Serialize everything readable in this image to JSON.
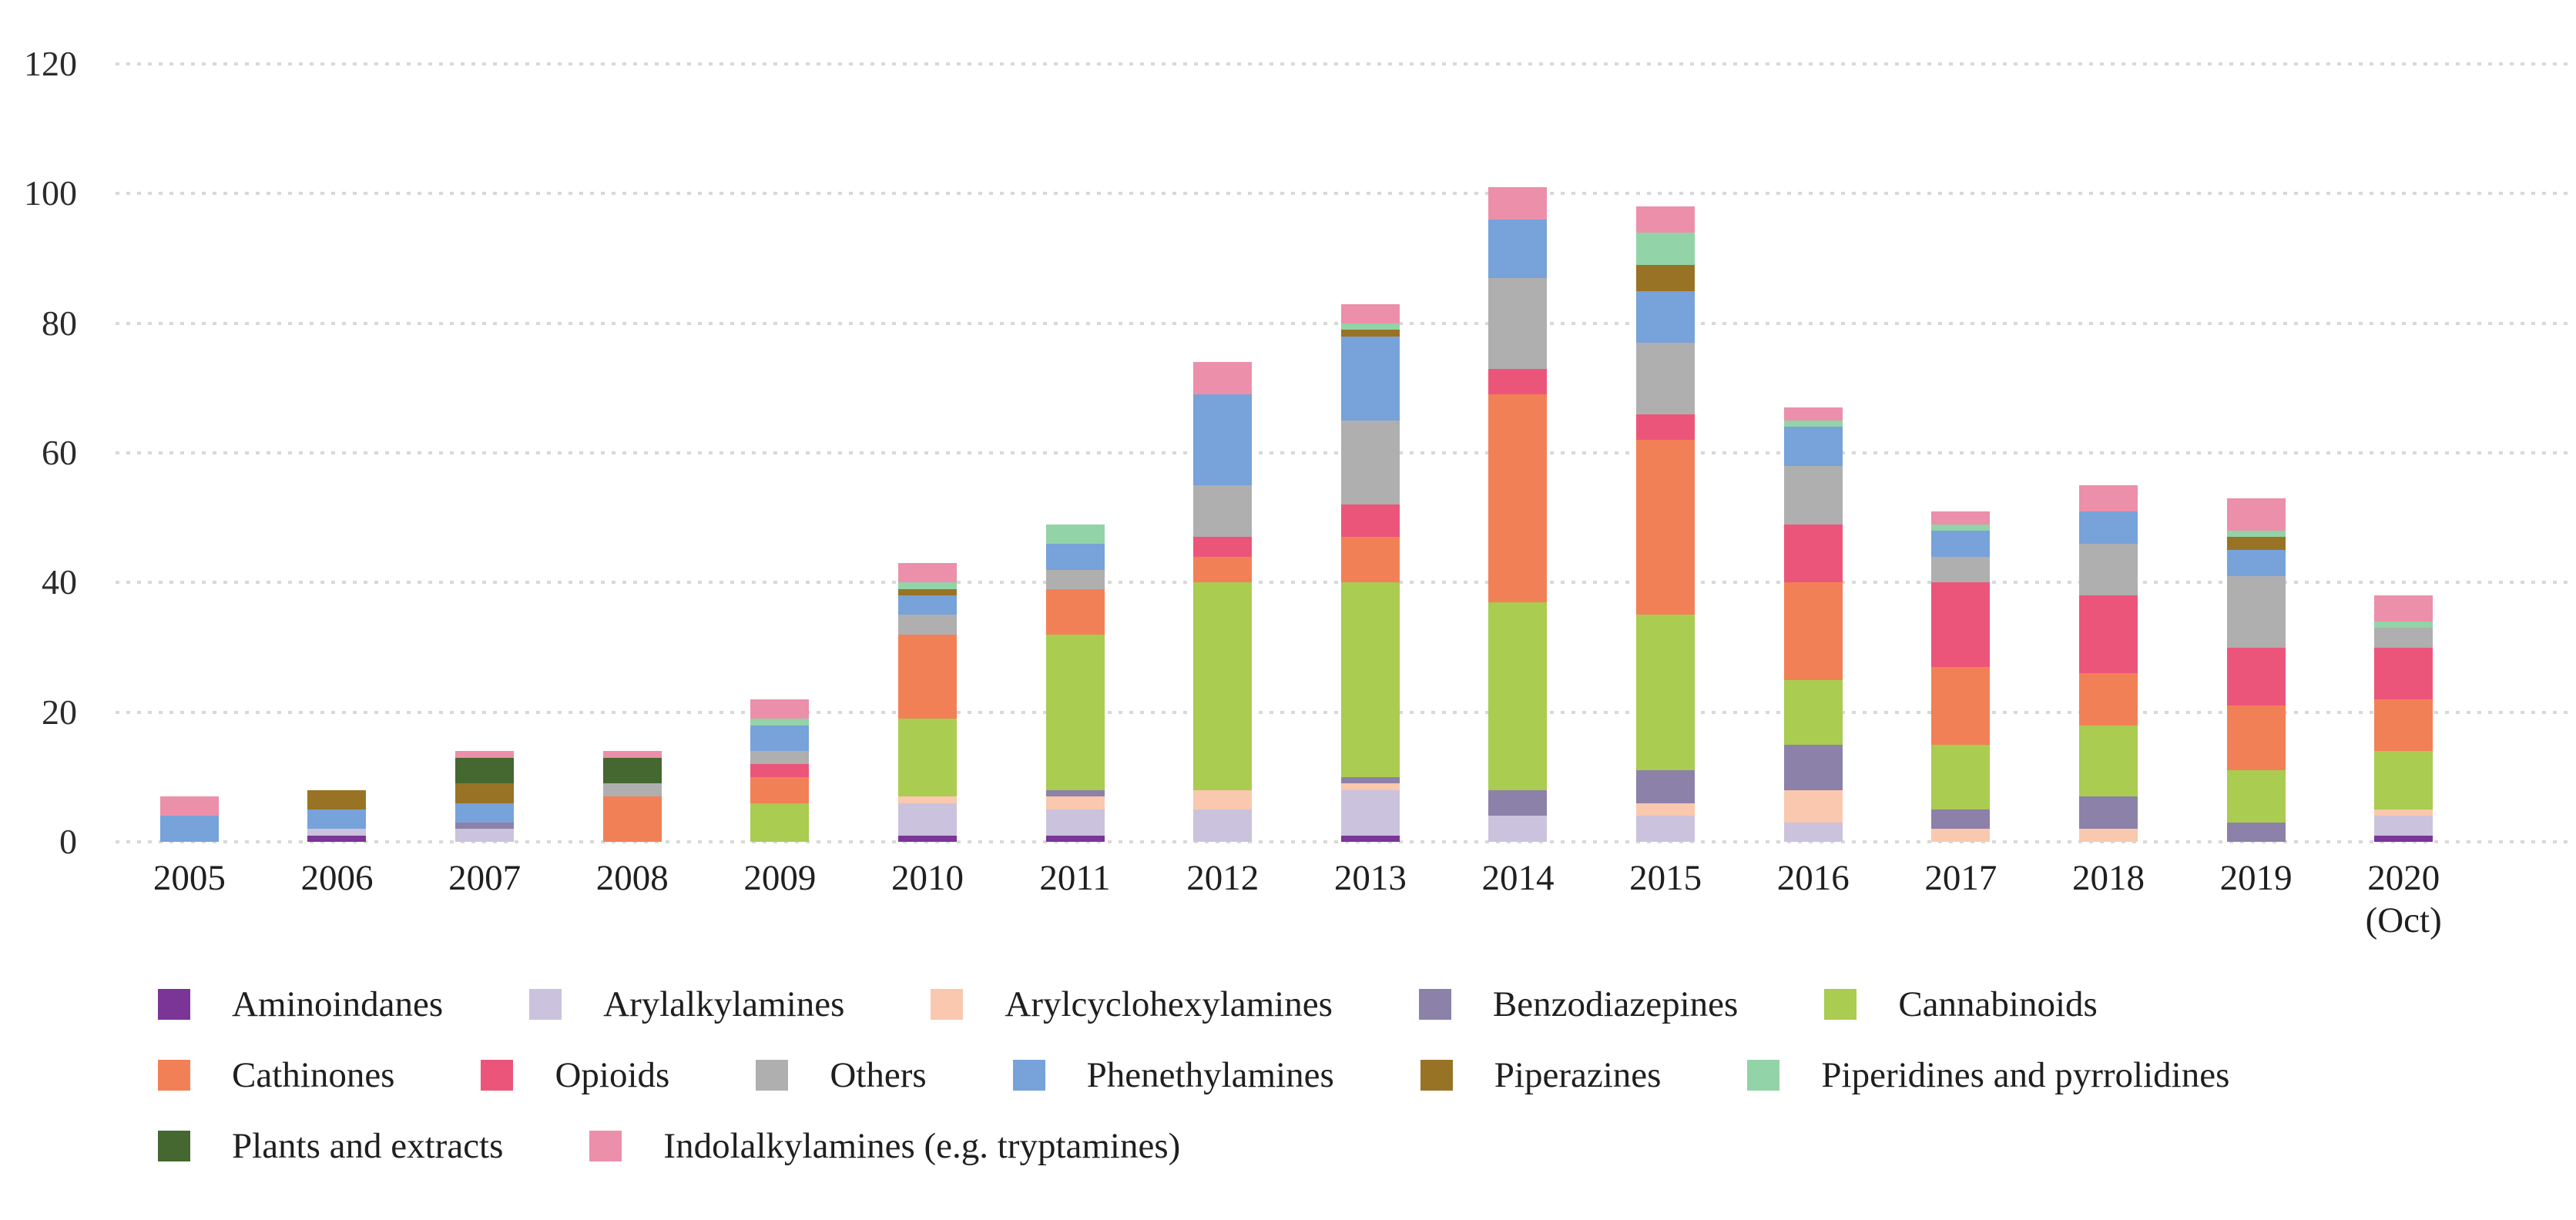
{
  "chart_data": {
    "type": "bar",
    "stacked": true,
    "title": "",
    "xlabel": "",
    "ylabel": "",
    "ylim": [
      0,
      120
    ],
    "yticks": [
      0,
      20,
      40,
      60,
      80,
      100,
      120
    ],
    "grid": "dotted horizontal gridlines",
    "legend_position": "bottom",
    "categories": [
      "2005",
      "2006",
      "2007",
      "2008",
      "2009",
      "2010",
      "2011",
      "2012",
      "2013",
      "2014",
      "2015",
      "2016",
      "2017",
      "2018",
      "2019",
      "2020"
    ],
    "category_note": {
      "category": "2020",
      "text": "(Oct)"
    },
    "series": [
      {
        "name": "Aminoindanes",
        "color": "#7A3597",
        "values": [
          0,
          1,
          0,
          0,
          0,
          1,
          1,
          0,
          1,
          0,
          0,
          0,
          0,
          0,
          0,
          1
        ]
      },
      {
        "name": "Arylalkylamines",
        "color": "#CBC2DD",
        "values": [
          0,
          1,
          2,
          0,
          0,
          5,
          4,
          5,
          7,
          4,
          4,
          3,
          0,
          0,
          0,
          3
        ]
      },
      {
        "name": "Arylcyclohexylamines",
        "color": "#FAC8AE",
        "values": [
          0,
          0,
          0,
          0,
          0,
          1,
          2,
          3,
          1,
          0,
          2,
          5,
          2,
          2,
          0,
          1
        ]
      },
      {
        "name": "Benzodiazepines",
        "color": "#8C81A8",
        "values": [
          0,
          0,
          1,
          0,
          0,
          0,
          1,
          0,
          1,
          4,
          5,
          7,
          3,
          5,
          3,
          0
        ]
      },
      {
        "name": "Cannabinoids",
        "color": "#A9CC51",
        "values": [
          0,
          0,
          0,
          0,
          6,
          12,
          24,
          32,
          30,
          29,
          24,
          10,
          10,
          11,
          8,
          9
        ]
      },
      {
        "name": "Cathinones",
        "color": "#F28057",
        "values": [
          0,
          0,
          0,
          7,
          4,
          13,
          7,
          4,
          7,
          32,
          27,
          15,
          12,
          8,
          10,
          8
        ]
      },
      {
        "name": "Opioids",
        "color": "#EC557A",
        "values": [
          0,
          0,
          0,
          0,
          2,
          0,
          0,
          3,
          5,
          4,
          4,
          9,
          13,
          12,
          9,
          8
        ]
      },
      {
        "name": "Others",
        "color": "#AFAFAF",
        "values": [
          0,
          0,
          0,
          2,
          2,
          3,
          3,
          8,
          13,
          14,
          11,
          9,
          4,
          8,
          11,
          3
        ]
      },
      {
        "name": "Phenethylamines",
        "color": "#77A2DA",
        "values": [
          4,
          3,
          3,
          0,
          4,
          3,
          4,
          14,
          13,
          9,
          8,
          6,
          4,
          5,
          4,
          0
        ]
      },
      {
        "name": "Piperazines",
        "color": "#997325",
        "values": [
          0,
          3,
          3,
          0,
          0,
          1,
          0,
          0,
          1,
          0,
          4,
          0,
          0,
          0,
          2,
          0
        ]
      },
      {
        "name": "Piperidines and pyrrolidines",
        "color": "#92D3A7",
        "values": [
          0,
          0,
          0,
          0,
          1,
          1,
          3,
          0,
          1,
          0,
          5,
          1,
          1,
          0,
          1,
          1
        ]
      },
      {
        "name": "Plants and extracts",
        "color": "#44682F",
        "values": [
          0,
          0,
          4,
          4,
          0,
          0,
          0,
          0,
          0,
          0,
          0,
          0,
          0,
          0,
          0,
          0
        ]
      },
      {
        "name": "Indolalkylamines (e.g. tryptamines)",
        "color": "#EC8FAA",
        "values": [
          3,
          0,
          1,
          1,
          3,
          3,
          0,
          5,
          3,
          5,
          4,
          2,
          2,
          4,
          5,
          4
        ]
      }
    ],
    "totals_per_year": [
      7,
      8,
      14,
      14,
      22,
      43,
      49,
      74,
      83,
      101,
      98,
      67,
      51,
      55,
      53,
      38
    ],
    "legend_rows": [
      [
        "Aminoindanes",
        "Arylalkylamines",
        "Arylcyclohexylamines",
        "Benzodiazepines",
        "Cannabinoids"
      ],
      [
        "Cathinones",
        "Opioids",
        "Others",
        "Phenethylamines",
        "Piperazines",
        "Piperidines and pyrrolidines"
      ],
      [
        "Plants and extracts",
        "Indolalkylamines (e.g. tryptamines)"
      ]
    ]
  }
}
